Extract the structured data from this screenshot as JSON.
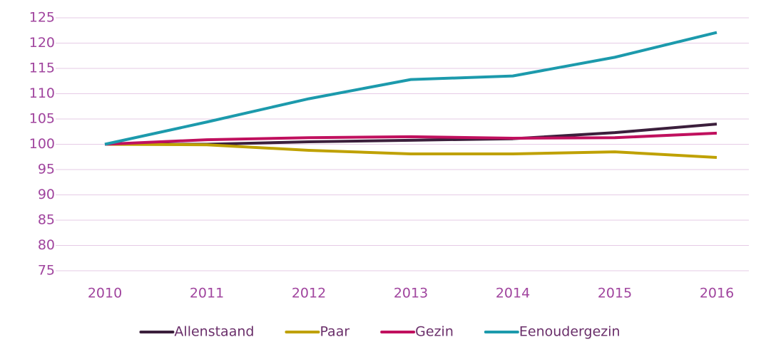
{
  "chart_data": {
    "type": "line",
    "categories": [
      "2010",
      "2011",
      "2012",
      "2013",
      "2014",
      "2015",
      "2016"
    ],
    "series": [
      {
        "name": "Allenstaand",
        "color": "#3b1f3c",
        "values": [
          100,
          100,
          100.5,
          100.8,
          101.1,
          102.3,
          104
        ]
      },
      {
        "name": "Paar",
        "color": "#bfa100",
        "values": [
          100,
          99.9,
          98.8,
          98.1,
          98.1,
          98.5,
          97.4
        ]
      },
      {
        "name": "Gezin",
        "color": "#c0105e",
        "values": [
          100,
          100.9,
          101.3,
          101.5,
          101.2,
          101.3,
          102.2
        ]
      },
      {
        "name": "Eenoudergezin",
        "color": "#1c9aac",
        "values": [
          100,
          104.4,
          109,
          112.8,
          113.5,
          117.2,
          122.1
        ]
      }
    ],
    "ylim": [
      75,
      125
    ],
    "yticks": [
      75,
      80,
      85,
      90,
      95,
      100,
      105,
      110,
      115,
      120,
      125
    ],
    "grid": true,
    "legend": "bottom"
  }
}
